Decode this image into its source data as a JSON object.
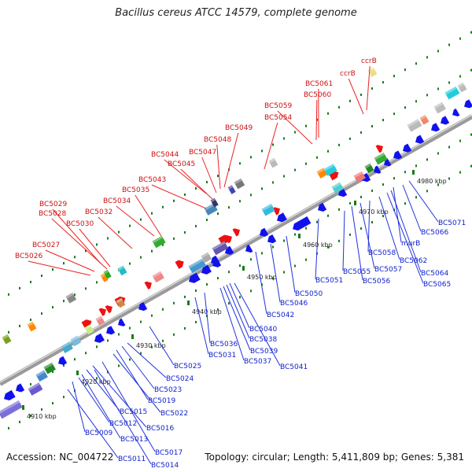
{
  "title": "Bacillus cereus ATCC 14579, complete genome",
  "accession": "Accession: NC_004722",
  "topology": "Topology: circular; Length: 5,411,809 bp; Genes: 5,381",
  "ticks": [
    "4910 kbp",
    "4920 kbp",
    "4930 kbp",
    "4940 kbp",
    "4950 kbp",
    "4960 kbp",
    "4970 kbp",
    "4980 kbp"
  ],
  "labels_forward": [
    "ccrB",
    "ccrB",
    "BC5061",
    "BC5060",
    "BC5059",
    "BC5054",
    "BC5049",
    "BC5048",
    "BC5047",
    "BC5044",
    "BC5045",
    "BC5043",
    "BC5035",
    "BC5034",
    "BC5032",
    "BC5029",
    "BC5028",
    "BC5030",
    "BC5027",
    "BC5026"
  ],
  "labels_reverse": [
    "BC5071",
    "BC5066",
    "murB",
    "BC5064",
    "BC5065",
    "BC5062",
    "BC5058",
    "BC5057",
    "BC5056",
    "BC5055",
    "BC5051",
    "BC5050",
    "BC5046",
    "BC5042",
    "BC5041",
    "BC5040",
    "BC5038",
    "BC5039",
    "BC5037",
    "BC5036",
    "BC5031",
    "BC5025",
    "BC5024",
    "BC5023",
    "BC5019",
    "BC5022",
    "BC5015",
    "BC5016",
    "BC5012",
    "BC5013",
    "BC5009",
    "BC5017",
    "BC5011",
    "BC5014"
  ]
}
